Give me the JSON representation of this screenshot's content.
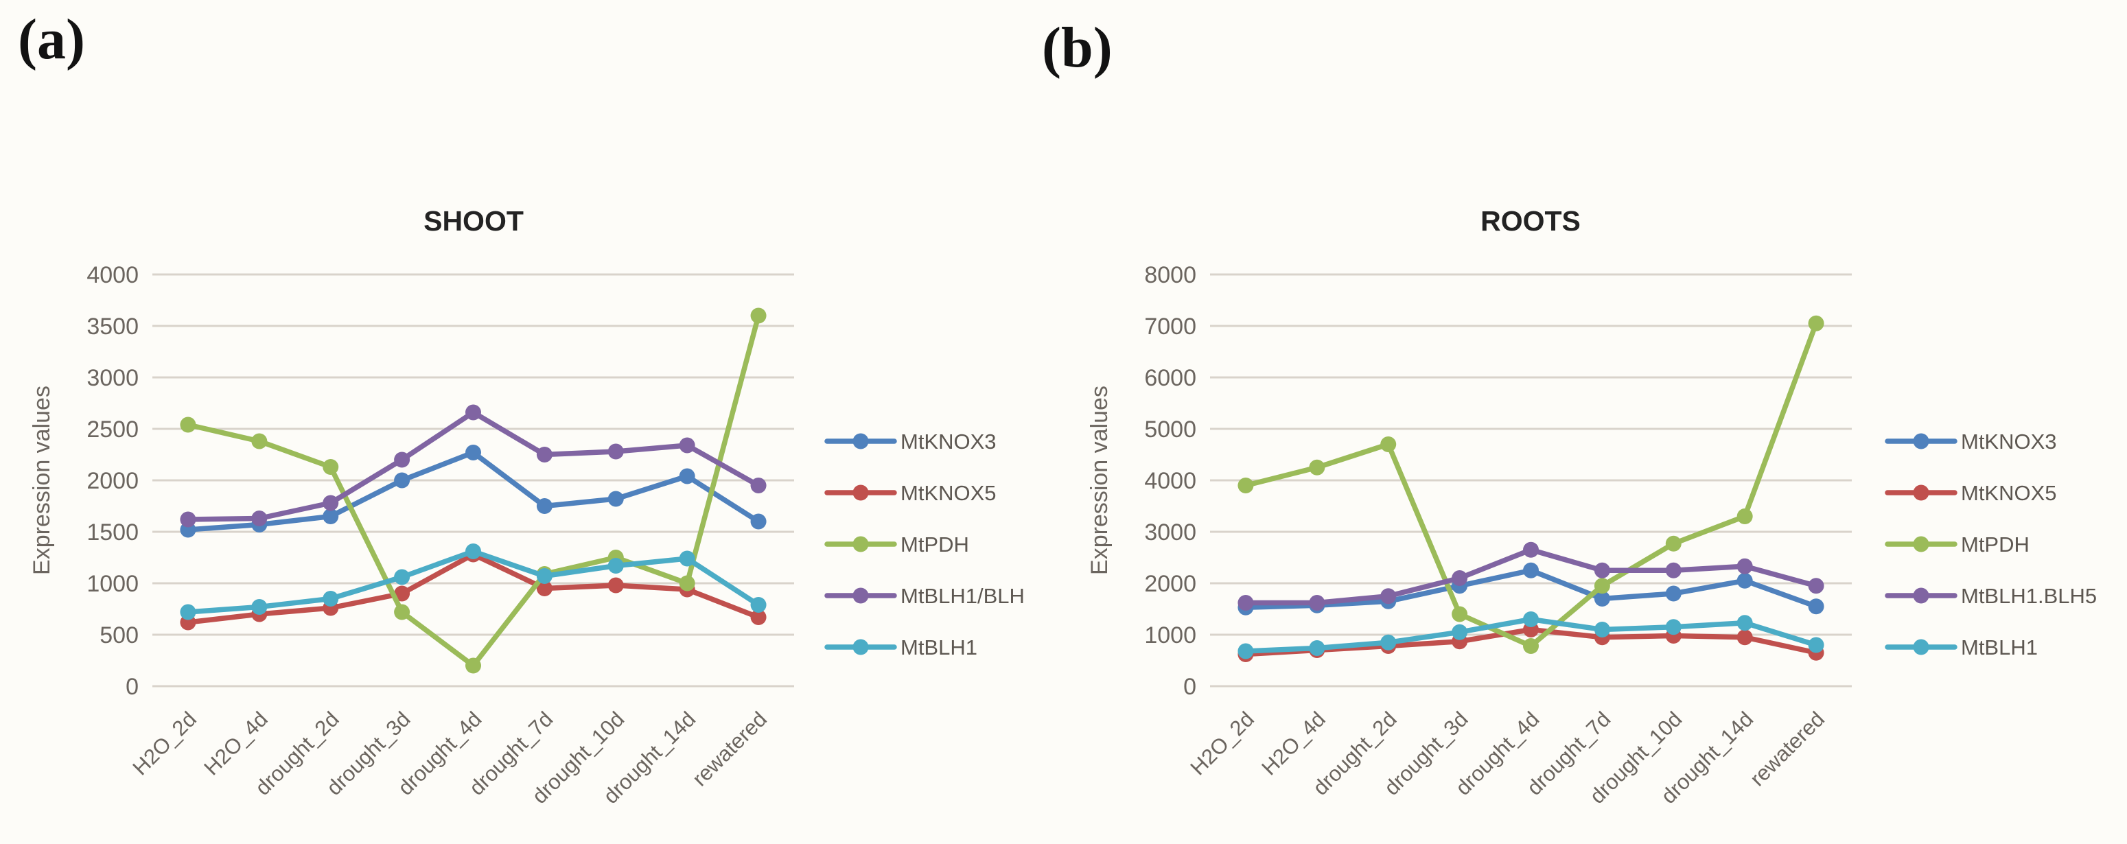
{
  "figure": {
    "panel_a_label": "(a)",
    "panel_b_label": "(b)"
  },
  "colors": {
    "MtKNOX3": "#4F81BD",
    "MtKNOX5": "#C0504D",
    "MtPDH": "#9BBB59",
    "MtBLH1_BLH": "#8064A2",
    "MtBLH1": "#4BACC6",
    "gridline": "#d9d3cb",
    "axis_text": "#6b655f",
    "title_text": "#232323"
  },
  "chart_data": [
    {
      "type": "line",
      "panel": "a",
      "title": "SHOOT",
      "ylabel": "Expression values",
      "xlabel": "",
      "ylim": [
        0,
        4000
      ],
      "ystep": 500,
      "grid": true,
      "legend_position": "right",
      "categories": [
        "H2O_2d",
        "H2O_4d",
        "drought_2d",
        "drought_3d",
        "drought_4d",
        "drought_7d",
        "drought_10d",
        "drought_14d",
        "rewatered"
      ],
      "series": [
        {
          "name": "MtKNOX3",
          "color": "#4F81BD",
          "values": [
            1520,
            1570,
            1650,
            2000,
            2270,
            1750,
            1820,
            2040,
            1600
          ]
        },
        {
          "name": "MtKNOX5",
          "color": "#C0504D",
          "values": [
            620,
            700,
            760,
            900,
            1280,
            950,
            980,
            940,
            670
          ]
        },
        {
          "name": "MtPDH",
          "color": "#9BBB59",
          "values": [
            2540,
            2380,
            2130,
            720,
            200,
            1090,
            1250,
            1000,
            3600
          ]
        },
        {
          "name": "MtBLH1/BLH",
          "color": "#8064A2",
          "values": [
            1620,
            1630,
            1780,
            2200,
            2660,
            2250,
            2280,
            2340,
            1950
          ]
        },
        {
          "name": "MtBLH1",
          "color": "#4BACC6",
          "values": [
            720,
            770,
            850,
            1060,
            1310,
            1070,
            1170,
            1240,
            790
          ]
        }
      ]
    },
    {
      "type": "line",
      "panel": "b",
      "title": "ROOTS",
      "ylabel": "Expression values",
      "xlabel": "",
      "ylim": [
        0,
        8000
      ],
      "ystep": 1000,
      "grid": true,
      "legend_position": "right",
      "categories": [
        "H2O_2d",
        "H2O_4d",
        "drought_2d",
        "drought_3d",
        "drought_4d",
        "drought_7d",
        "drought_10d",
        "drought_14d",
        "rewatered"
      ],
      "series": [
        {
          "name": "MtKNOX3",
          "color": "#4F81BD",
          "values": [
            1530,
            1570,
            1650,
            1950,
            2250,
            1700,
            1800,
            2050,
            1550
          ]
        },
        {
          "name": "MtKNOX5",
          "color": "#C0504D",
          "values": [
            620,
            700,
            780,
            870,
            1100,
            950,
            980,
            950,
            650
          ]
        },
        {
          "name": "MtPDH",
          "color": "#9BBB59",
          "values": [
            3900,
            4250,
            4700,
            1400,
            780,
            1950,
            2770,
            3300,
            7050
          ]
        },
        {
          "name": "MtBLH1.BLH5",
          "color": "#8064A2",
          "values": [
            1620,
            1620,
            1750,
            2100,
            2650,
            2250,
            2250,
            2330,
            1950
          ]
        },
        {
          "name": "MtBLH1",
          "color": "#4BACC6",
          "values": [
            680,
            740,
            850,
            1050,
            1300,
            1100,
            1150,
            1230,
            800
          ]
        }
      ]
    }
  ]
}
